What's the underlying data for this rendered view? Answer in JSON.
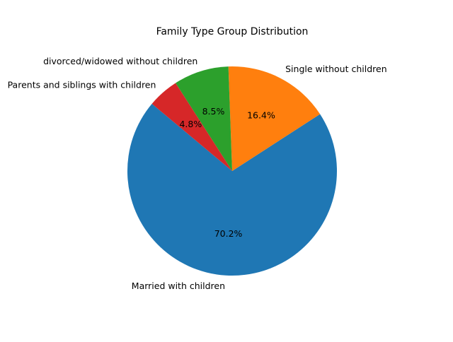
{
  "chart_data": {
    "type": "pie",
    "title": "Family Type Group Distribution",
    "slices": [
      {
        "label": "Married with children",
        "value": 70.2,
        "pct_label": "70.2%",
        "color": "#1f77b4"
      },
      {
        "label": "Single without children",
        "value": 16.4,
        "pct_label": "16.4%",
        "color": "#ff7f0e"
      },
      {
        "label": "divorced/widowed without children",
        "value": 8.5,
        "pct_label": "8.5%",
        "color": "#2ca02c"
      },
      {
        "label": "Parents and siblings with children",
        "value": 4.8,
        "pct_label": "4.8%",
        "color": "#d62728"
      }
    ],
    "start_angle_deg": 140,
    "direction": "counterclockwise",
    "legend": "none"
  }
}
